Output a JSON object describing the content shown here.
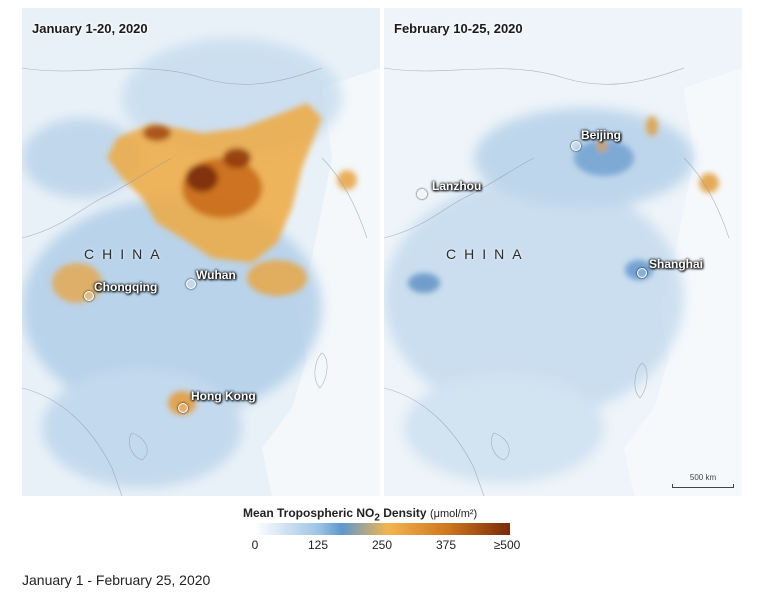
{
  "panels": [
    {
      "title": "January 1-20, 2020",
      "country_label": "CHINA",
      "cities": [
        "Chongqing",
        "Wuhan",
        "Hong Kong"
      ]
    },
    {
      "title": "February 10-25, 2020",
      "country_label": "CHINA",
      "cities": [
        "Beijing",
        "Lanzhou",
        "Shanghai"
      ],
      "scale_bar": "500 km"
    }
  ],
  "legend": {
    "title": "Mean Tropospheric NO",
    "subscript": "2",
    "title_suffix": " Density",
    "unit": "(μmol/m²)",
    "ticks": [
      "0",
      "125",
      "250",
      "375",
      "≥500"
    ],
    "colors": [
      "#ffffff",
      "#5e98cf",
      "#f3b54e",
      "#d07820",
      "#7a2a05"
    ]
  },
  "caption": "January 1 - February 25, 2020"
}
